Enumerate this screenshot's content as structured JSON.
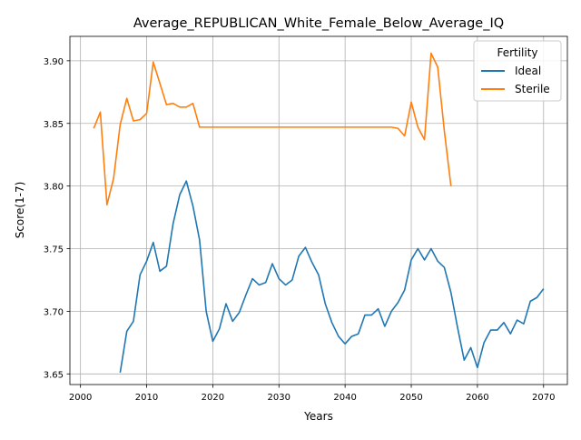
{
  "chart_data": {
    "type": "line",
    "title": "Average_REPUBLICAN_White_Female_Below_Average_IQ",
    "xlabel": "Years",
    "ylabel": "Score(1-7)",
    "xlim": [
      1998.4,
      2073.6
    ],
    "ylim": [
      3.6415,
      3.9195
    ],
    "x_ticks": [
      2000,
      2010,
      2020,
      2030,
      2040,
      2050,
      2060,
      2070
    ],
    "y_ticks": [
      3.65,
      3.7,
      3.75,
      3.8,
      3.85,
      3.9
    ],
    "x_tick_labels": [
      "2000",
      "2010",
      "2020",
      "2030",
      "2040",
      "2050",
      "2060",
      "2070"
    ],
    "y_tick_labels": [
      "3.65",
      "3.70",
      "3.75",
      "3.80",
      "3.85",
      "3.90"
    ],
    "grid": true,
    "legend": {
      "title": "Fertility",
      "position": "top-right"
    },
    "series": [
      {
        "name": "Ideal",
        "color": "#1f77b4",
        "x": [
          2006,
          2007,
          2008,
          2009,
          2010,
          2011,
          2012,
          2013,
          2014,
          2015,
          2016,
          2017,
          2018,
          2019,
          2020,
          2021,
          2022,
          2023,
          2024,
          2025,
          2026,
          2027,
          2028,
          2029,
          2030,
          2031,
          2032,
          2033,
          2034,
          2035,
          2036,
          2037,
          2038,
          2039,
          2040,
          2041,
          2042,
          2043,
          2044,
          2045,
          2046,
          2047,
          2048,
          2049,
          2050,
          2051,
          2052,
          2053,
          2054,
          2055,
          2056,
          2057,
          2058,
          2059,
          2060,
          2061,
          2062,
          2063,
          2064,
          2065,
          2066,
          2067,
          2068,
          2069,
          2070
        ],
        "y": [
          3.651,
          3.684,
          3.692,
          3.729,
          3.74,
          3.755,
          3.732,
          3.736,
          3.77,
          3.793,
          3.804,
          3.784,
          3.757,
          3.7,
          3.676,
          3.686,
          3.706,
          3.692,
          3.699,
          3.713,
          3.726,
          3.721,
          3.723,
          3.738,
          3.726,
          3.721,
          3.725,
          3.744,
          3.751,
          3.739,
          3.729,
          3.706,
          3.691,
          3.68,
          3.674,
          3.68,
          3.682,
          3.697,
          3.697,
          3.702,
          3.688,
          3.7,
          3.707,
          3.717,
          3.741,
          3.75,
          3.741,
          3.75,
          3.74,
          3.735,
          3.715,
          3.687,
          3.661,
          3.671,
          3.655,
          3.675,
          3.685,
          3.685,
          3.691,
          3.682,
          3.693,
          3.69,
          3.708,
          3.711,
          3.718
        ]
      },
      {
        "name": "Sterile",
        "color": "#ff7f0e",
        "x": [
          2002,
          2003,
          2004,
          2005,
          2006,
          2007,
          2008,
          2009,
          2010,
          2011,
          2012,
          2013,
          2014,
          2015,
          2016,
          2017,
          2018,
          2019,
          2020,
          2021,
          2022,
          2023,
          2024,
          2025,
          2026,
          2027,
          2028,
          2029,
          2030,
          2031,
          2032,
          2033,
          2034,
          2035,
          2036,
          2037,
          2038,
          2039,
          2040,
          2041,
          2042,
          2043,
          2044,
          2045,
          2046,
          2047,
          2048,
          2049,
          2050,
          2051,
          2052,
          2053,
          2054,
          2055,
          2056
        ],
        "y": [
          3.846,
          3.859,
          3.785,
          3.806,
          3.849,
          3.87,
          3.852,
          3.853,
          3.858,
          3.899,
          3.882,
          3.865,
          3.866,
          3.863,
          3.863,
          3.866,
          3.847,
          3.847,
          3.847,
          3.847,
          3.847,
          3.847,
          3.847,
          3.847,
          3.847,
          3.847,
          3.847,
          3.847,
          3.847,
          3.847,
          3.847,
          3.847,
          3.847,
          3.847,
          3.847,
          3.847,
          3.847,
          3.847,
          3.847,
          3.847,
          3.847,
          3.847,
          3.847,
          3.847,
          3.847,
          3.847,
          3.846,
          3.84,
          3.867,
          3.847,
          3.837,
          3.906,
          3.895,
          3.844,
          3.8
        ]
      }
    ]
  }
}
